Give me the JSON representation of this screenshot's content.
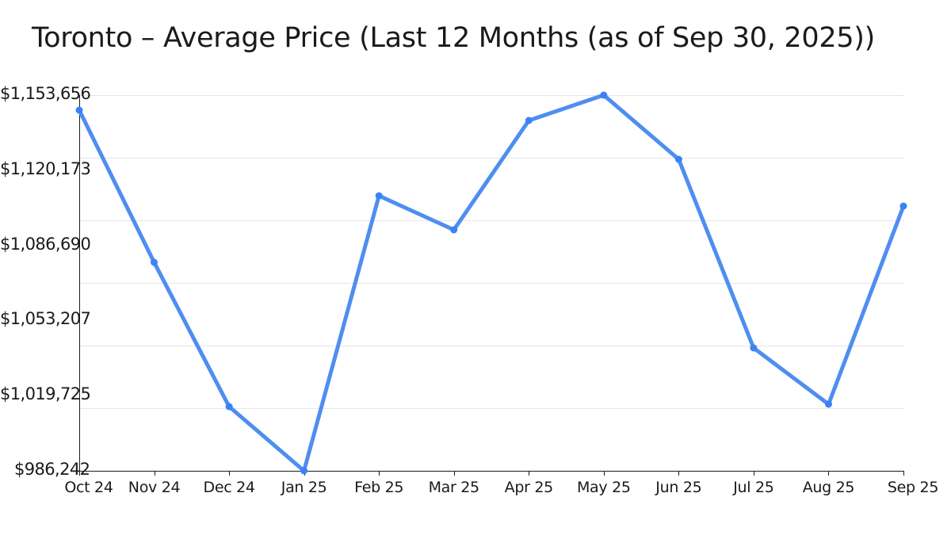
{
  "title": "Toronto – Average Price (Last 12 Months (as of Sep 30, 2025))",
  "colors": {
    "line": "#4f8ef0",
    "marker": "#3b82f6",
    "grid": "#e5e5e5",
    "axis": "#1a1a1a"
  },
  "y_tick_labels": [
    "$1,153,656",
    "$1,120,173",
    "$1,086,690",
    "$1,053,207",
    "$1,019,725",
    "$986,242"
  ],
  "x_tick_labels": [
    "Oct 24",
    "Nov 24",
    "Dec 24",
    "Jan 25",
    "Feb 25",
    "Mar 25",
    "Apr 25",
    "May 25",
    "Jun 25",
    "Jul 25",
    "Aug 25",
    "Sep 25"
  ],
  "chart_data": {
    "type": "line",
    "title": "Toronto – Average Price (Last 12 Months (as of Sep 30, 2025))",
    "xlabel": "",
    "ylabel": "",
    "categories": [
      "Oct 24",
      "Nov 24",
      "Dec 24",
      "Jan 25",
      "Feb 25",
      "Mar 25",
      "Apr 25",
      "May 25",
      "Jun 25",
      "Jul 25",
      "Aug 25",
      "Sep 25"
    ],
    "series": [
      {
        "name": "Average Price",
        "values": [
          1146945,
          1079132,
          1014851,
          986242,
          1108799,
          1093612,
          1142354,
          1153656,
          1125046,
          1040987,
          1015910,
          1104208
        ]
      }
    ],
    "ylim": [
      986242,
      1153656
    ],
    "yticks": [
      986242,
      1019725,
      1053207,
      1086690,
      1120173,
      1153656
    ],
    "grid": true,
    "legend": "none"
  }
}
